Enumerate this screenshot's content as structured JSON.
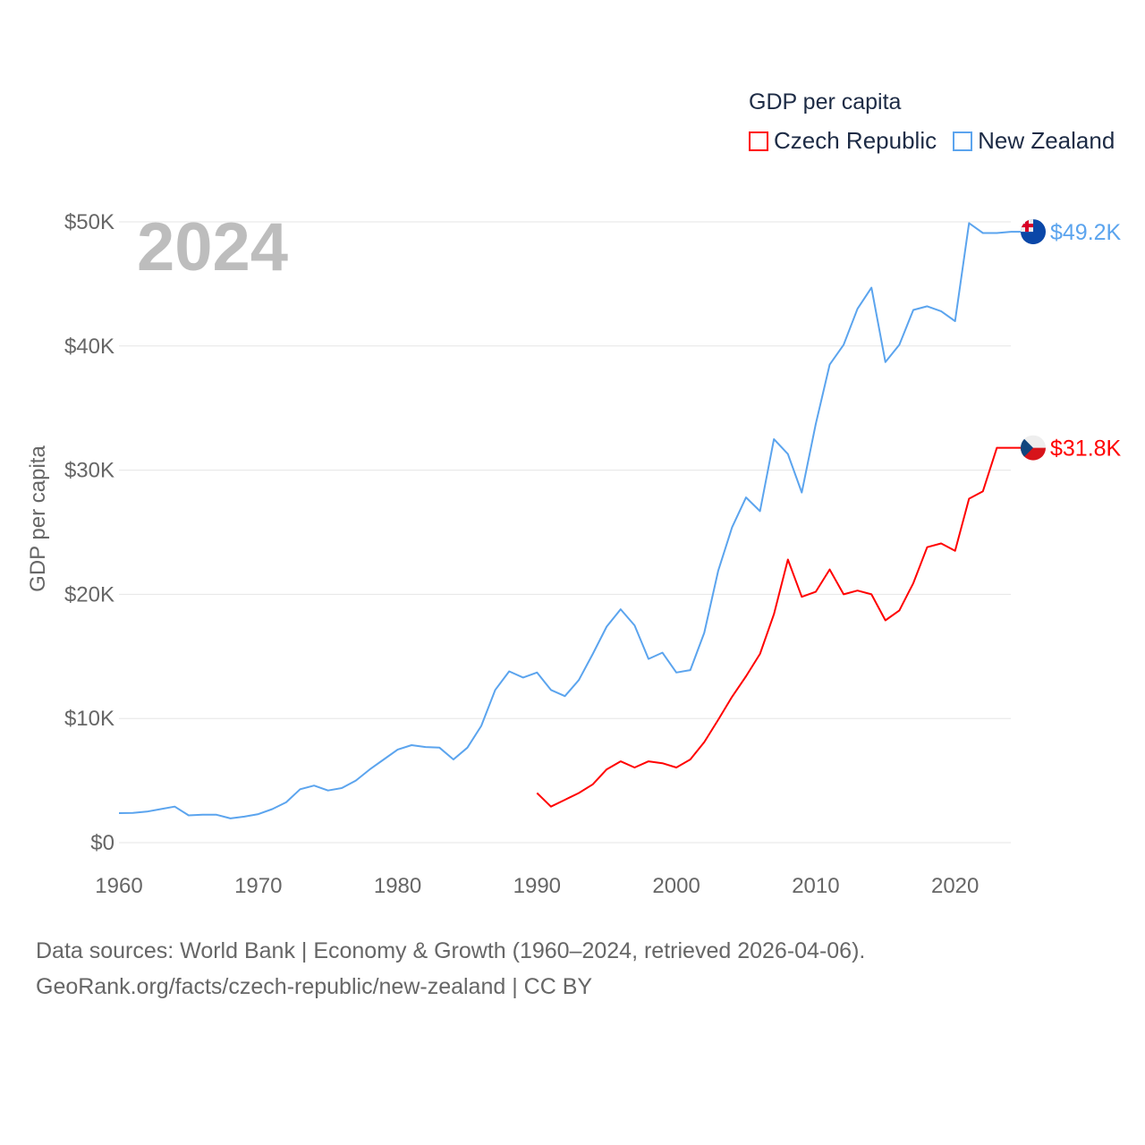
{
  "chart_data": {
    "type": "line",
    "title": "GDP per capita",
    "year_label": "2024",
    "xlabel": "",
    "ylabel": "GDP per capita",
    "xlim": [
      1960,
      2024
    ],
    "ylim": [
      0,
      50
    ],
    "x_ticks": [
      "1960",
      "1970",
      "1980",
      "1990",
      "2000",
      "2010",
      "2020"
    ],
    "y_ticks": [
      "$0",
      "$10K",
      "$20K",
      "$30K",
      "$40K",
      "$50K"
    ],
    "grid": true,
    "legend_position": "top-right",
    "series": [
      {
        "name": "Czech Republic",
        "color": "#ff0000",
        "end_label": "$31.8K",
        "start_year": 1990,
        "values": [
          4.0,
          2.9,
          3.45,
          4.0,
          4.7,
          5.9,
          6.55,
          6.05,
          6.55,
          6.4,
          6.05,
          6.7,
          8.1,
          9.9,
          11.75,
          13.4,
          15.2,
          18.4,
          22.8,
          19.8,
          20.2,
          22.0,
          20.0,
          20.3,
          20.0,
          17.9,
          18.7,
          20.9,
          23.8,
          24.1,
          23.5,
          27.7,
          28.3,
          31.8,
          31.8
        ]
      },
      {
        "name": "New Zealand",
        "color": "#5ba4ee",
        "end_label": "$49.2K",
        "start_year": 1960,
        "values": [
          2.38,
          2.4,
          2.5,
          2.7,
          2.9,
          2.2,
          2.25,
          2.25,
          1.95,
          2.1,
          2.3,
          2.7,
          3.25,
          4.3,
          4.6,
          4.2,
          4.4,
          5.0,
          5.9,
          6.7,
          7.5,
          7.85,
          7.7,
          7.65,
          6.7,
          7.65,
          9.4,
          12.3,
          13.8,
          13.3,
          13.7,
          12.3,
          11.8,
          13.1,
          15.2,
          17.4,
          18.8,
          17.5,
          14.8,
          15.3,
          13.7,
          13.9,
          16.9,
          21.9,
          25.4,
          27.8,
          26.7,
          32.5,
          31.3,
          28.2,
          33.7,
          38.5,
          40.1,
          43.0,
          44.7,
          38.7,
          40.1,
          42.9,
          43.2,
          42.8,
          42.0,
          49.9,
          49.1,
          49.1,
          49.2
        ]
      }
    ]
  },
  "footer": {
    "line1": "Data sources: World Bank | Economy & Growth (1960–2024, retrieved 2026-04-06).",
    "line2": "GeoRank.org/facts/czech-republic/new-zealand | CC BY"
  }
}
